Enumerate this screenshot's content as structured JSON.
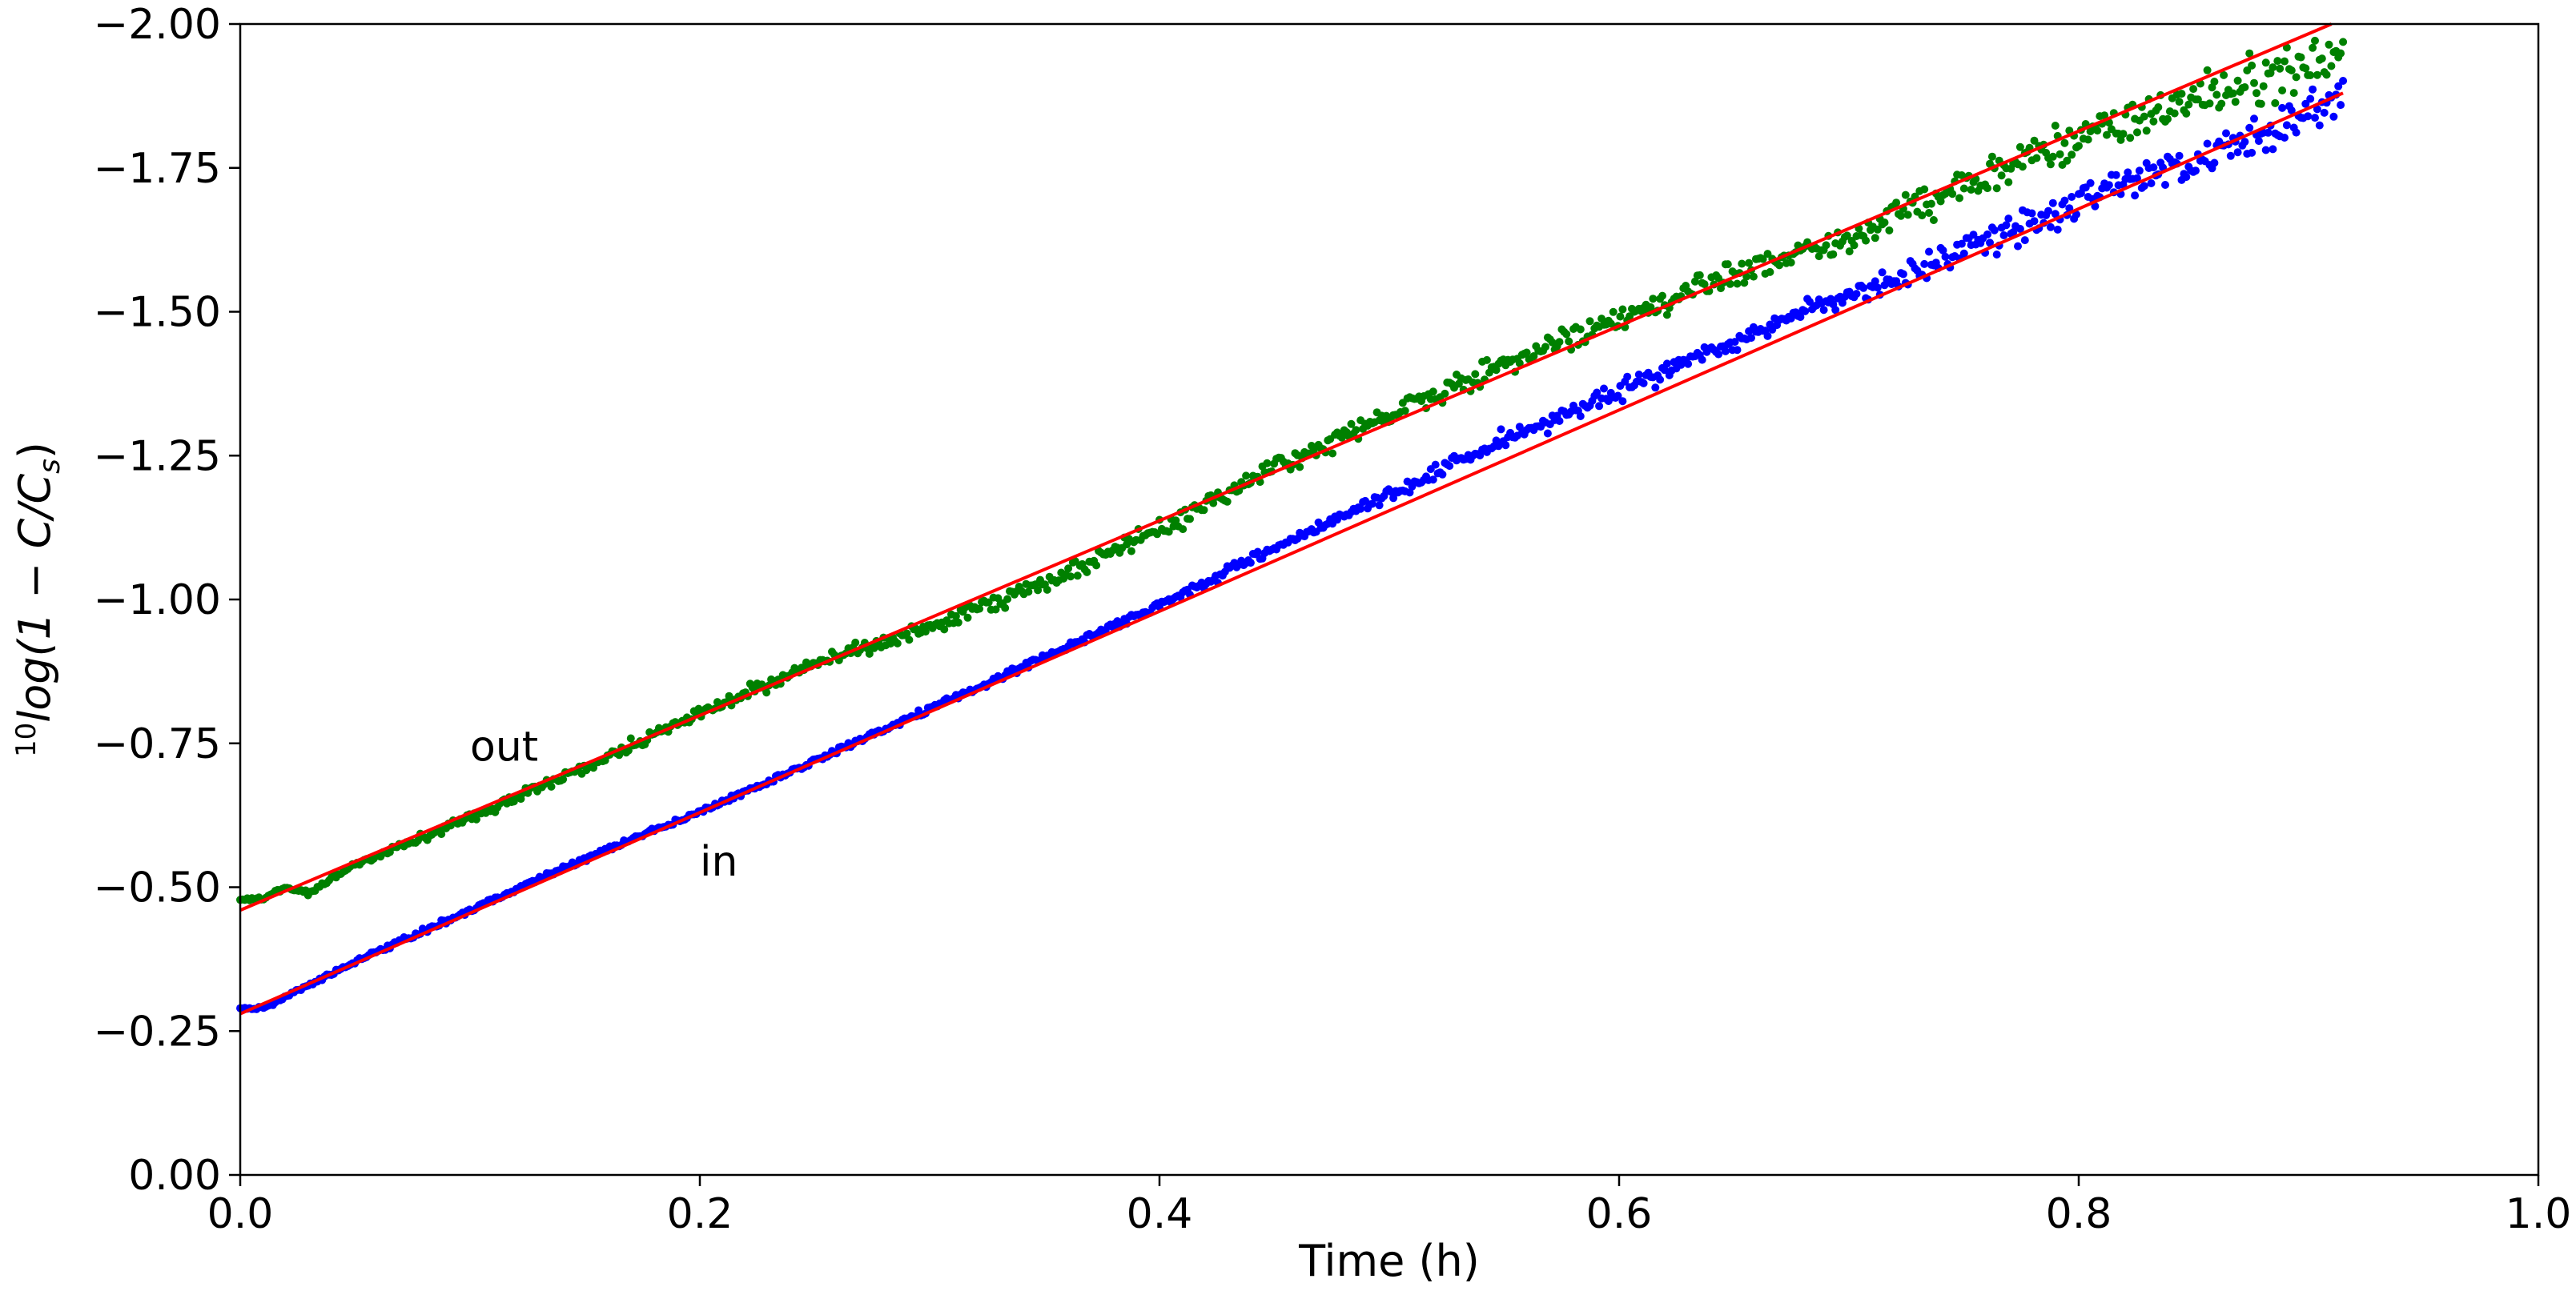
{
  "chart_data": {
    "type": "scatter",
    "title": "",
    "xlabel": "Time (h)",
    "ylabel": {
      "prefix": "10",
      "text": "log(1 − C/C",
      "subscript": "s",
      "suffix": ")"
    },
    "xlim": [
      0.0,
      1.0
    ],
    "ylim": [
      0.0,
      -2.0
    ],
    "x_ticks": [
      "0.0",
      "0.2",
      "0.4",
      "0.6",
      "0.8",
      "1.0"
    ],
    "y_ticks": [
      "0.00",
      "−0.25",
      "−0.50",
      "−0.75",
      "−1.00",
      "−1.25",
      "−1.50",
      "−1.75",
      "−2.00"
    ],
    "grid": false,
    "legend": "none",
    "annotations": [
      {
        "text": "out",
        "x": 0.1,
        "y": -0.72
      },
      {
        "text": "in",
        "x": 0.2,
        "y": -0.52
      }
    ],
    "series": [
      {
        "color": "#008000",
        "marker": "dot",
        "x": [
          0.0,
          0.01,
          0.02,
          0.03,
          0.05,
          0.1,
          0.15,
          0.2,
          0.25,
          0.3,
          0.35,
          0.4,
          0.45,
          0.5,
          0.55,
          0.6,
          0.65,
          0.7,
          0.75,
          0.8,
          0.85,
          0.9,
          0.915
        ],
        "y": [
          -0.48,
          -0.48,
          -0.5,
          -0.49,
          -0.54,
          -0.62,
          -0.71,
          -0.8,
          -0.89,
          -0.95,
          -1.03,
          -1.12,
          -1.23,
          -1.32,
          -1.41,
          -1.49,
          -1.57,
          -1.63,
          -1.72,
          -1.8,
          -1.87,
          -1.93,
          -1.95
        ],
        "noise": [
          0.004,
          0.004,
          0.004,
          0.004,
          0.006,
          0.008,
          0.01,
          0.01,
          0.012,
          0.012,
          0.015,
          0.015,
          0.018,
          0.02,
          0.02,
          0.022,
          0.025,
          0.028,
          0.03,
          0.035,
          0.04,
          0.045,
          0.05
        ]
      },
      {
        "color": "#0000ff",
        "marker": "dot",
        "x": [
          0.0,
          0.01,
          0.02,
          0.05,
          0.1,
          0.15,
          0.2,
          0.25,
          0.3,
          0.35,
          0.4,
          0.45,
          0.5,
          0.55,
          0.6,
          0.65,
          0.7,
          0.75,
          0.8,
          0.85,
          0.9,
          0.915
        ],
        "y": [
          -0.29,
          -0.29,
          -0.31,
          -0.37,
          -0.46,
          -0.55,
          -0.63,
          -0.72,
          -0.81,
          -0.9,
          -0.99,
          -1.09,
          -1.18,
          -1.28,
          -1.36,
          -1.45,
          -1.53,
          -1.6,
          -1.69,
          -1.76,
          -1.84,
          -1.87
        ],
        "noise": [
          0.003,
          0.003,
          0.003,
          0.004,
          0.004,
          0.005,
          0.005,
          0.006,
          0.006,
          0.007,
          0.008,
          0.01,
          0.012,
          0.014,
          0.016,
          0.018,
          0.02,
          0.025,
          0.03,
          0.032,
          0.035,
          0.04
        ]
      }
    ],
    "fit_lines": [
      {
        "color": "#ff0000",
        "x": [
          0.0,
          0.91
        ],
        "y": [
          -0.46,
          -2.0
        ]
      },
      {
        "color": "#ff0000",
        "x": [
          0.0,
          0.915
        ],
        "y": [
          -0.28,
          -1.88
        ]
      }
    ]
  }
}
